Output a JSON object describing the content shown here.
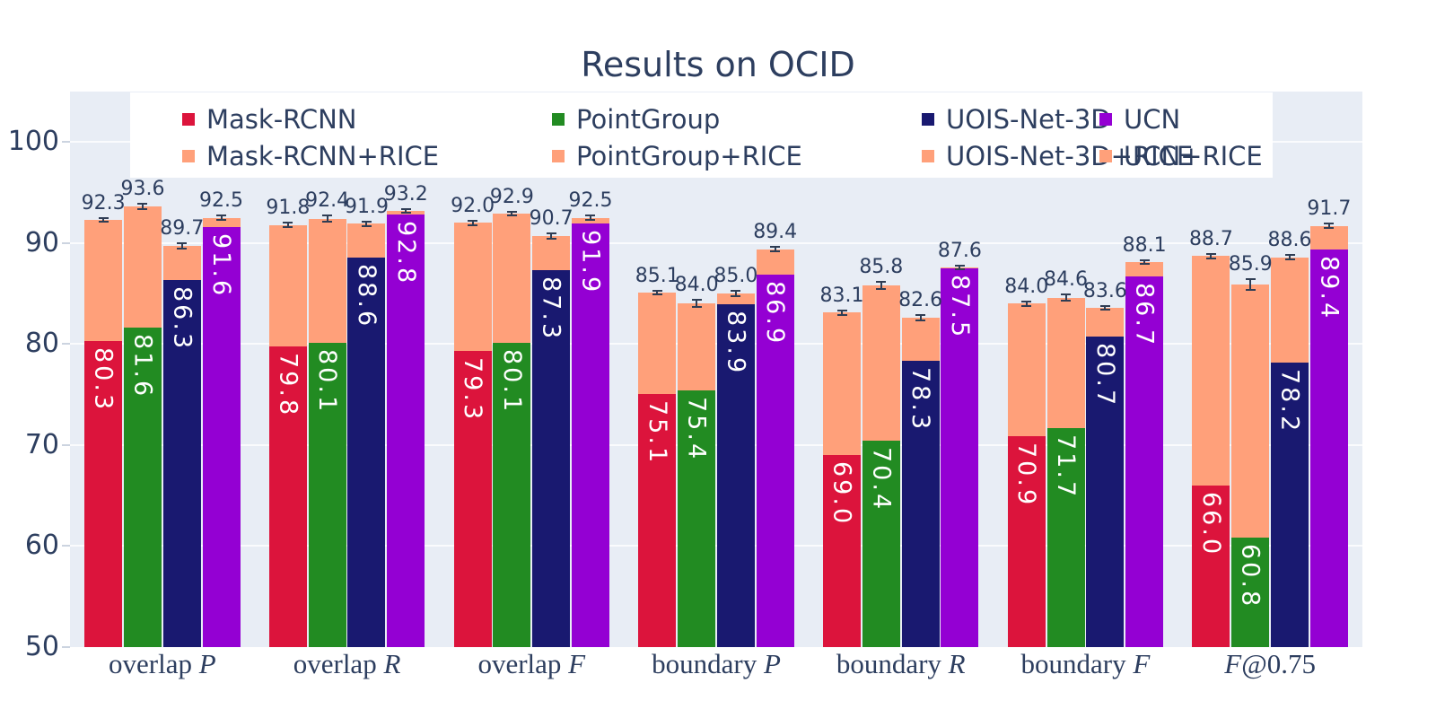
{
  "title": "Results on OCID",
  "colors": {
    "background": "#ffffff",
    "panel": "#e8edf5",
    "gridline": "#fafbfd",
    "axis_text": "#2d3e5f",
    "inside_label_text": "#ffffff",
    "error_bar": "#2f3d54",
    "rice_color": "#FFA07A"
  },
  "chart_data": {
    "type": "bar",
    "title": "Results on OCID",
    "xlabel": "",
    "ylabel": "",
    "ylim": [
      50,
      105
    ],
    "yticks": [
      50,
      60,
      70,
      80,
      90,
      100
    ],
    "grid": true,
    "legend_position": "top",
    "legend_rows": 2,
    "categories": [
      "overlap P",
      "overlap R",
      "overlap F",
      "boundary P",
      "boundary R",
      "boundary F",
      "F@0.75"
    ],
    "categories_display": [
      {
        "prefix": "overlap ",
        "italic": "P",
        "suffix": ""
      },
      {
        "prefix": "overlap ",
        "italic": "R",
        "suffix": ""
      },
      {
        "prefix": "overlap ",
        "italic": "F",
        "suffix": ""
      },
      {
        "prefix": "boundary ",
        "italic": "P",
        "suffix": ""
      },
      {
        "prefix": "boundary ",
        "italic": "R",
        "suffix": ""
      },
      {
        "prefix": "boundary ",
        "italic": "F",
        "suffix": ""
      },
      {
        "prefix": "",
        "italic": "F",
        "suffix": "@0.75"
      }
    ],
    "rice_color": "#FFA07A",
    "methods": [
      {
        "name": "Mask-RCNN",
        "rice_name": "Mask-RCNN+RICE",
        "color": "#DC143C",
        "base": [
          80.3,
          79.8,
          79.3,
          75.1,
          69.0,
          70.9,
          66.0
        ],
        "rice": [
          92.3,
          91.8,
          92.0,
          85.1,
          83.1,
          84.0,
          88.7
        ],
        "err": [
          0.2,
          0.2,
          0.2,
          0.2,
          0.2,
          0.2,
          0.2
        ]
      },
      {
        "name": "PointGroup",
        "rice_name": "PointGroup+RICE",
        "color": "#228B22",
        "base": [
          81.6,
          80.1,
          80.1,
          75.4,
          70.4,
          71.7,
          60.8
        ],
        "rice": [
          93.6,
          92.4,
          92.9,
          84.0,
          85.8,
          84.6,
          85.9
        ],
        "err": [
          0.25,
          0.3,
          0.2,
          0.35,
          0.35,
          0.3,
          0.5
        ]
      },
      {
        "name": "UOIS-Net-3D",
        "rice_name": "UOIS-Net-3D+RICE",
        "color": "#191970",
        "base": [
          86.3,
          88.6,
          87.3,
          83.9,
          78.3,
          80.7,
          78.2
        ],
        "rice": [
          89.7,
          91.9,
          90.7,
          85.0,
          82.6,
          83.6,
          88.6
        ],
        "err": [
          0.25,
          0.25,
          0.25,
          0.25,
          0.25,
          0.2,
          0.25
        ]
      },
      {
        "name": "UCN",
        "rice_name": "UCN+RICE",
        "color": "#9400D3",
        "base": [
          91.6,
          92.8,
          91.9,
          86.9,
          87.5,
          86.7,
          89.4
        ],
        "rice": [
          92.5,
          93.2,
          92.5,
          89.4,
          87.6,
          88.1,
          91.7
        ],
        "err": [
          0.2,
          0.2,
          0.2,
          0.25,
          0.2,
          0.2,
          0.2
        ]
      }
    ]
  }
}
